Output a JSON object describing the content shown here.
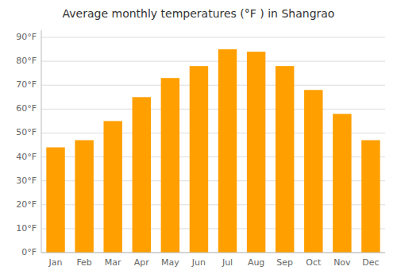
{
  "chart_data": {
    "type": "bar",
    "title": "Average monthly temperatures (°F ) in Shangrao",
    "categories": [
      "Jan",
      "Feb",
      "Mar",
      "Apr",
      "May",
      "Jun",
      "Jul",
      "Aug",
      "Sep",
      "Oct",
      "Nov",
      "Dec"
    ],
    "values": [
      44,
      47,
      55,
      65,
      73,
      78,
      85,
      84,
      78,
      68,
      58,
      47
    ],
    "color": "#FFA000",
    "ylim": [
      0,
      93
    ],
    "yticks": [
      {
        "value": 0,
        "label": "0°F"
      },
      {
        "value": 10,
        "label": "10°F"
      },
      {
        "value": 20,
        "label": "20°F"
      },
      {
        "value": 30,
        "label": "30°F"
      },
      {
        "value": 40,
        "label": "40°F"
      },
      {
        "value": 50,
        "label": "50°F"
      },
      {
        "value": 60,
        "label": "60°F"
      },
      {
        "value": 70,
        "label": "70°F"
      },
      {
        "value": 80,
        "label": "80°F"
      },
      {
        "value": 90,
        "label": "90°F"
      }
    ],
    "grid": true
  }
}
